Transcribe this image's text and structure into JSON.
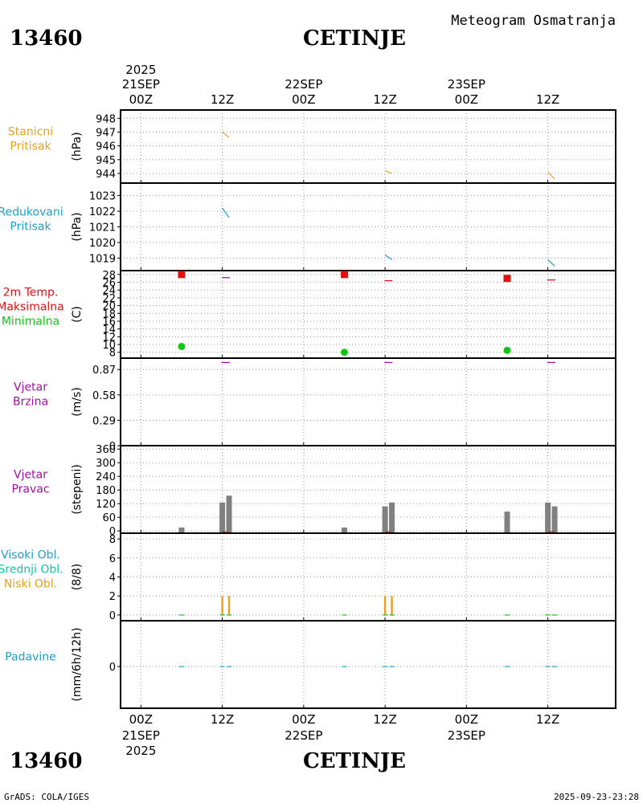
{
  "header": {
    "station_id": "13460",
    "station_name": "CETINJE",
    "product": "Meteogram Osmatranja"
  },
  "footer": {
    "credit": "GrADS: COLA/IGES",
    "timestamp": "2025-09-23-23:28"
  },
  "time_axis": {
    "year": "2025",
    "hour_labels": [
      "00Z",
      "12Z",
      "00Z",
      "12Z",
      "00Z",
      "12Z"
    ],
    "hours": [
      0,
      12,
      24,
      36,
      48,
      60
    ],
    "date_labels": [
      {
        "hour": 0,
        "label": "21SEP"
      },
      {
        "hour": 24,
        "label": "22SEP"
      },
      {
        "hour": 48,
        "label": "23SEP"
      }
    ],
    "range_hours": [
      -3,
      70
    ]
  },
  "colors": {
    "orange": "#e8a020",
    "cyan": "#1ea0c8",
    "red": "#e01010",
    "green": "#10c810",
    "purple": "#a010a0",
    "teal": "#10c8a0",
    "gray": "#808080",
    "frame": "#000000"
  },
  "chart_data": [
    {
      "id": "station_pressure",
      "type": "line",
      "label_lines": [
        "Stanicni",
        "Pritisak"
      ],
      "label_colors": [
        "orange",
        "orange"
      ],
      "ylabel": "(hPa)",
      "ylim": [
        943.3,
        948.6
      ],
      "yticks": [
        948,
        947,
        946,
        945,
        944
      ],
      "tick_labels": [
        "948",
        "947",
        "946",
        "945",
        "944"
      ],
      "series": [
        {
          "color": "orange",
          "segments": [
            [
              [
                12,
                947.0
              ],
              [
                13,
                946.6
              ]
            ],
            [
              [
                36,
                944.2
              ],
              [
                37,
                944.0
              ]
            ],
            [
              [
                60,
                944.1
              ],
              [
                61,
                943.6
              ]
            ]
          ]
        }
      ]
    },
    {
      "id": "sea_level_pressure",
      "type": "line",
      "label_lines": [
        "Redukovani",
        "Pritisak"
      ],
      "label_colors": [
        "cyan",
        "cyan"
      ],
      "ylabel": "(hPa)",
      "ylim": [
        1018.2,
        1023.8
      ],
      "yticks": [
        1023,
        1022,
        1021,
        1020,
        1019
      ],
      "tick_labels": [
        "1023",
        "1022",
        "1021",
        "1020",
        "1019"
      ],
      "series": [
        {
          "color": "cyan",
          "segments": [
            [
              [
                12,
                1022.2
              ],
              [
                13,
                1021.6
              ]
            ],
            [
              [
                36,
                1019.2
              ],
              [
                37,
                1018.9
              ]
            ],
            [
              [
                60,
                1018.9
              ],
              [
                61,
                1018.5
              ]
            ]
          ]
        }
      ]
    },
    {
      "id": "temperature",
      "type": "scatter",
      "label_lines": [
        "2m Temp.",
        "Maksimalna",
        "Minimalna"
      ],
      "label_colors": [
        "red",
        "red",
        "green"
      ],
      "ylabel": "(C)",
      "ylim": [
        6.5,
        29
      ],
      "yticks": [
        28,
        26,
        24,
        22,
        20,
        18,
        16,
        14,
        12,
        10,
        8
      ],
      "tick_labels": [
        "28",
        "26",
        "24",
        "22",
        "20",
        "18",
        "16",
        "14",
        "12",
        "10",
        "8"
      ],
      "maximum": [
        {
          "x": 6,
          "y": 28
        },
        {
          "x": 30,
          "y": 28
        },
        {
          "x": 54,
          "y": 27
        }
      ],
      "minimum": [
        {
          "x": 6,
          "y": 9.5
        },
        {
          "x": 30,
          "y": 8
        },
        {
          "x": 54,
          "y": 8.5
        }
      ],
      "temp_marks": [
        {
          "x": 12.5,
          "y": 27.2,
          "color": "purple"
        },
        {
          "x": 36.5,
          "y": 26.4,
          "color": "red"
        },
        {
          "x": 60.5,
          "y": 26.6,
          "color": "red"
        }
      ]
    },
    {
      "id": "wind_speed",
      "type": "line",
      "label_lines": [
        "Vjetar",
        "Brzina"
      ],
      "label_colors": [
        "purple",
        "purple"
      ],
      "ylabel": "(m/s)",
      "ylim": [
        0,
        1.0
      ],
      "yticks": [
        0.87,
        0.58,
        0.29,
        0
      ],
      "tick_labels": [
        "0.87",
        "0.58",
        "0.29",
        "0"
      ],
      "marks": [
        {
          "x": 12.5,
          "y": 0.95
        },
        {
          "x": 36.5,
          "y": 0.95
        },
        {
          "x": 60.5,
          "y": 0.95
        }
      ]
    },
    {
      "id": "wind_direction",
      "type": "bar",
      "label_lines": [
        "Vjetar",
        "Pravac"
      ],
      "label_colors": [
        "purple",
        "purple"
      ],
      "ylabel": "(stepeni)",
      "ylim": [
        -10,
        375
      ],
      "yticks": [
        360,
        300,
        240,
        180,
        120,
        60,
        0
      ],
      "tick_labels": [
        "360",
        "300",
        "240",
        "180",
        "120",
        "60",
        "0"
      ],
      "bars": [
        {
          "x": 6,
          "y": 15
        },
        {
          "x": 12,
          "y": 125
        },
        {
          "x": 13,
          "y": 155
        },
        {
          "x": 30,
          "y": 15
        },
        {
          "x": 36,
          "y": 108
        },
        {
          "x": 37,
          "y": 125
        },
        {
          "x": 54,
          "y": 85
        },
        {
          "x": 60,
          "y": 125
        },
        {
          "x": 61,
          "y": 108
        }
      ]
    },
    {
      "id": "cloud_cover",
      "type": "bar",
      "label_lines": [
        "Visoki Obl.",
        "Srednji Obl.",
        "Niski Obl."
      ],
      "label_colors": [
        "cyan",
        "teal",
        "orange"
      ],
      "ylabel": "(8/8)",
      "ylim": [
        -0.6,
        8.6
      ],
      "yticks": [
        8,
        6,
        4,
        2,
        0
      ],
      "tick_labels": [
        "8",
        "6",
        "4",
        "2",
        "0"
      ],
      "low": [
        {
          "x": 12,
          "y": 2
        },
        {
          "x": 13,
          "y": 2
        },
        {
          "x": 36,
          "y": 2
        },
        {
          "x": 37,
          "y": 2
        }
      ],
      "zero_marks": [
        6,
        12,
        13,
        30,
        36,
        37,
        54,
        60,
        61
      ]
    },
    {
      "id": "precipitation",
      "type": "bar",
      "label_lines": [
        "Padavine"
      ],
      "label_colors": [
        "cyan"
      ],
      "ylabel": "(mm/6h/12h)",
      "ylim": [
        -1,
        1.1
      ],
      "yticks": [
        0
      ],
      "tick_labels": [
        "0"
      ],
      "zero_marks": [
        6,
        12,
        13,
        30,
        36,
        37,
        54,
        60,
        61
      ]
    }
  ]
}
